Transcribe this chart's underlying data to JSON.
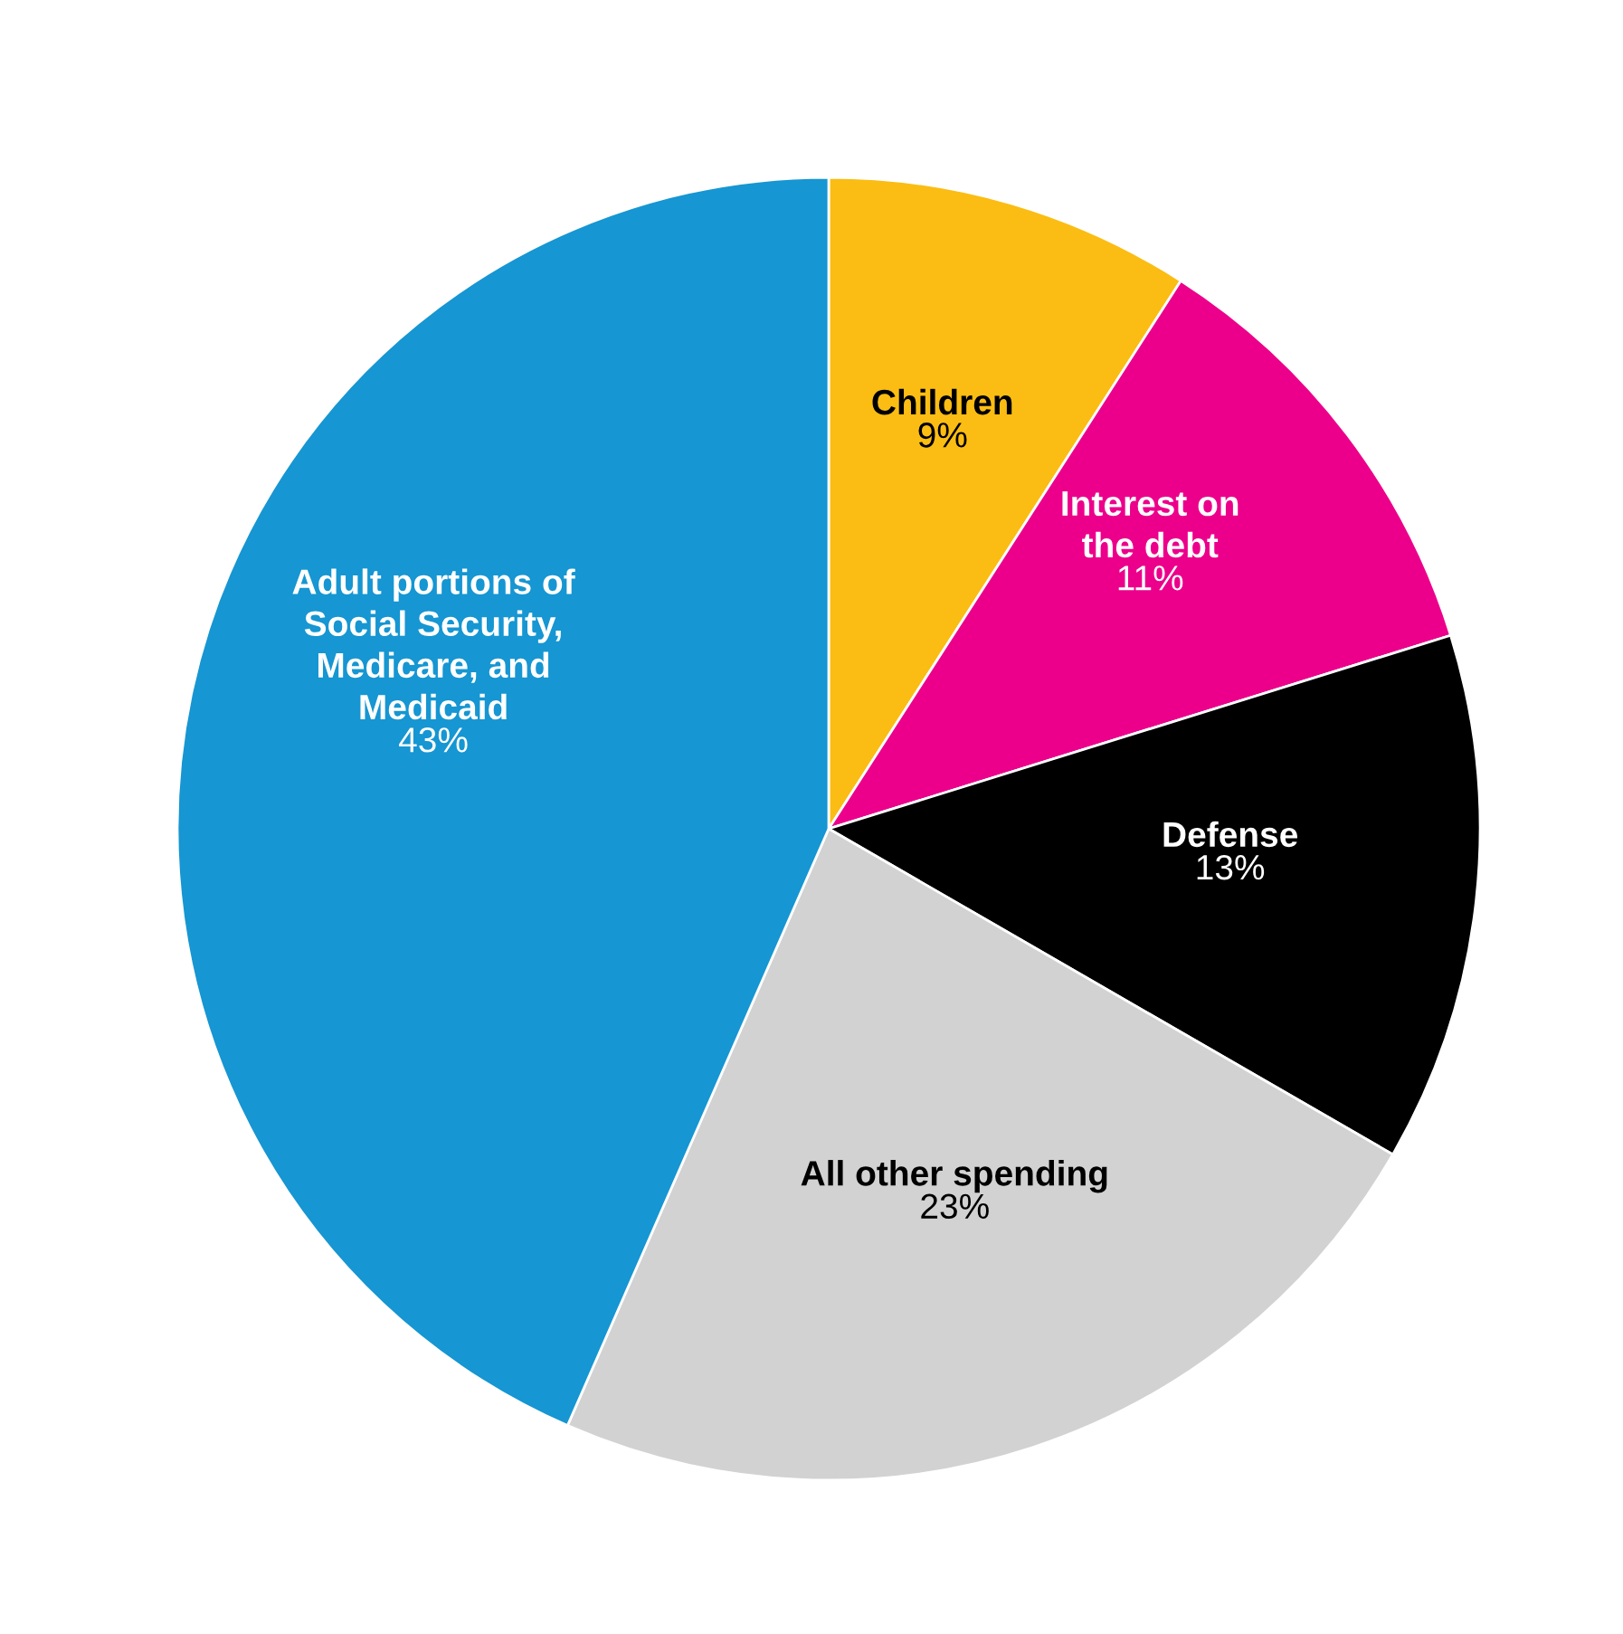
{
  "chart_data": {
    "type": "pie",
    "categories": [
      "Children",
      "Interest on\nthe debt",
      "Defense",
      "All other spending",
      "Adult portions of\nSocial Security,\nMedicare, and\nMedicaid"
    ],
    "values": [
      9,
      11,
      13,
      23,
      43
    ],
    "value_labels": [
      "9%",
      "11%",
      "13%",
      "23%",
      "43%"
    ],
    "colors": [
      "#fbbd13",
      "#ec008b",
      "#000000",
      "#d2d2d2",
      "#1696d2"
    ]
  }
}
